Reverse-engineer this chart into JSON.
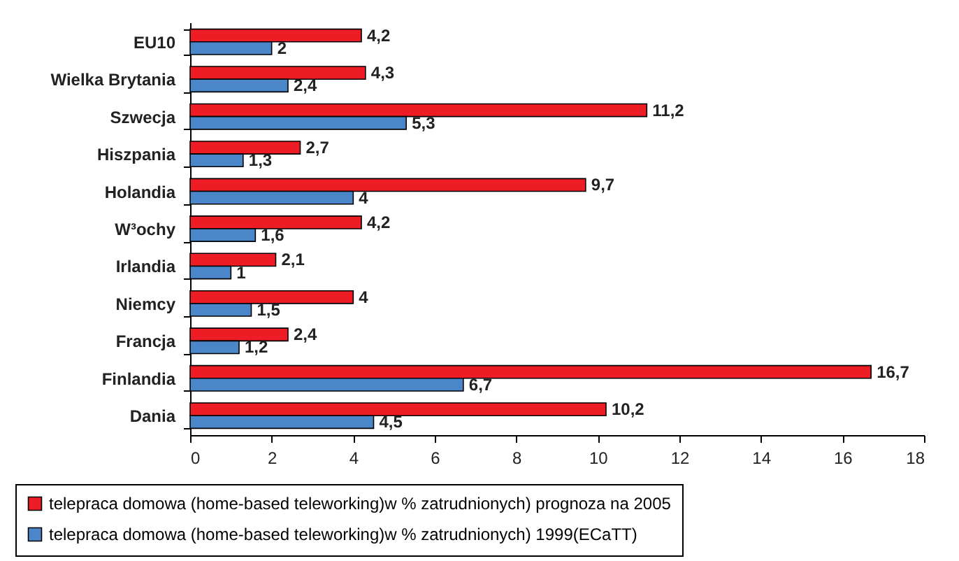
{
  "chart_data": {
    "type": "bar",
    "orientation": "horizontal",
    "categories": [
      "EU10",
      "Wielka Brytania",
      "Szwecja",
      "Hiszpania",
      "Holandia",
      "W³ochy",
      "Irlandia",
      "Niemcy",
      "Francja",
      "Finlandia",
      "Dania"
    ],
    "series": [
      {
        "name": "telepraca domowa (home-based teleworking)w % zatrudnionych) prognoza na 2005",
        "color": "#ee1c25",
        "values": [
          4.2,
          4.3,
          11.2,
          2.7,
          9.7,
          4.2,
          2.1,
          4,
          2.4,
          16.7,
          10.2
        ],
        "value_labels": [
          "4,2",
          "4,3",
          "11,2",
          "2,7",
          "9,7",
          "4,2",
          "2,1",
          "4",
          "2,4",
          "16,7",
          "10,2"
        ]
      },
      {
        "name": "telepraca domowa (home-based teleworking)w % zatrudnionych) 1999(ECaTT)",
        "color": "#4a86c8",
        "values": [
          2,
          2.4,
          5.3,
          1.3,
          4,
          1.6,
          1,
          1.5,
          1.2,
          6.7,
          4.5
        ],
        "value_labels": [
          "2",
          "2,4",
          "5,3",
          "1,3",
          "4",
          "1,6",
          "1",
          "1,5",
          "1,2",
          "6,7",
          "4,5"
        ]
      }
    ],
    "xlim": [
      0,
      18
    ],
    "xticks": [
      0,
      2,
      4,
      6,
      8,
      10,
      12,
      14,
      16,
      18
    ],
    "legend": "bottom",
    "grid": false
  }
}
